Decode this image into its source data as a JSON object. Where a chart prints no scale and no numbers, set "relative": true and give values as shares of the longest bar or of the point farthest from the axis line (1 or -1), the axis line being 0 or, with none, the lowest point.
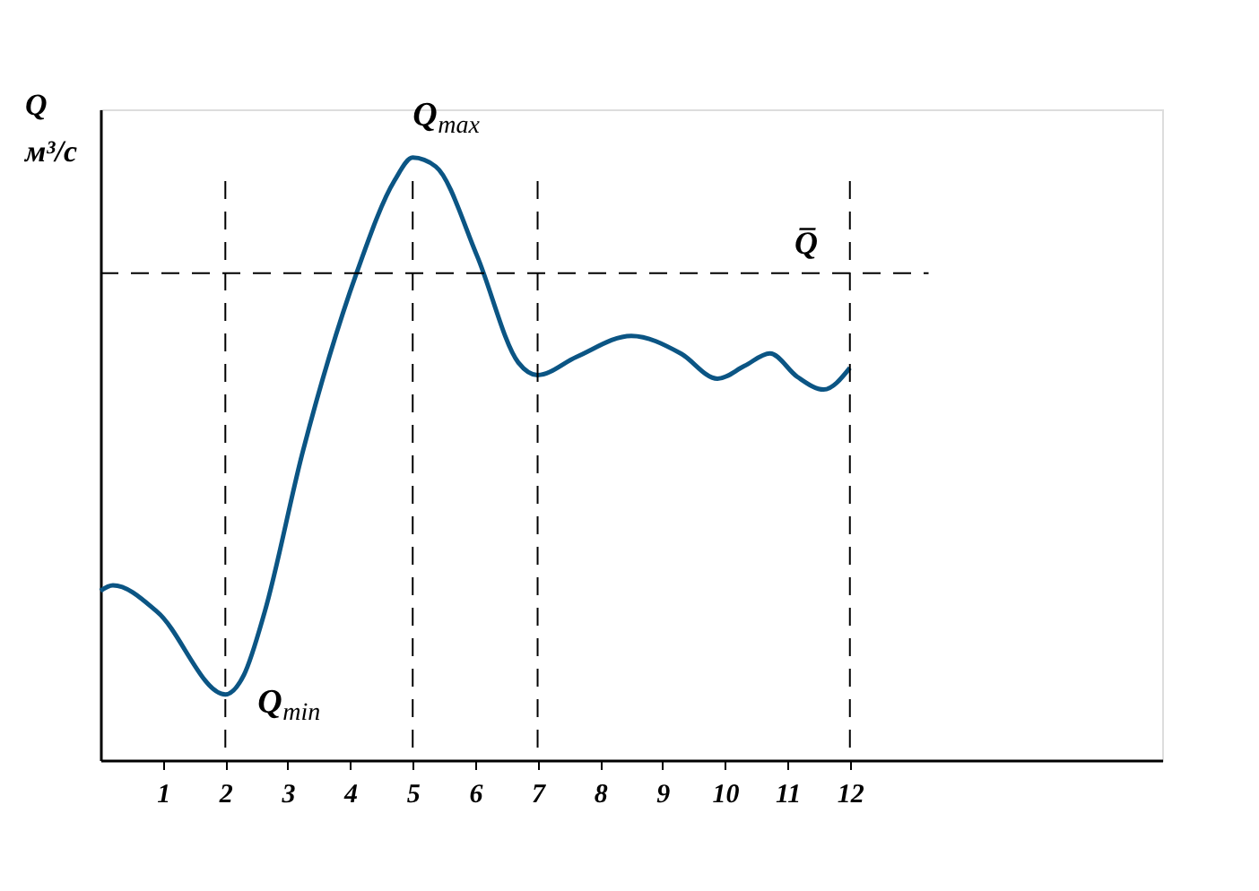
{
  "chart_data": {
    "type": "line",
    "relative": true,
    "ylabel": "Q\nм³/с",
    "xlim": [
      0,
      17
    ],
    "xticks": [
      1,
      2,
      3,
      4,
      5,
      6,
      7,
      8,
      9,
      10,
      11,
      12
    ],
    "grid": false,
    "marker": "none",
    "line_style": "solid",
    "series": [
      {
        "color": "#0b5584",
        "x": [
          0,
          0.2,
          0.91,
          2,
          2.3,
          2.63,
          3.24,
          4.1,
          4.71,
          5,
          5.37,
          6.03,
          6.69,
          7,
          7.62,
          8.5,
          9.29,
          9.88,
          10.31,
          10.72,
          11.16,
          11.58,
          12
        ],
        "values": [
          0.281,
          0.29,
          0.246,
          0.109,
          0.142,
          0.246,
          0.512,
          0.808,
          0.962,
          1,
          0.985,
          0.837,
          0.66,
          0.639,
          0.669,
          0.704,
          0.675,
          0.633,
          0.654,
          0.675,
          0.636,
          0.615,
          0.651
        ]
      }
    ],
    "ref_lines": [
      {
        "axis": "y",
        "value": 0.808,
        "label": "Q̅",
        "line_style": "dashed",
        "color": "#000000"
      },
      {
        "axis": "x",
        "value": 2,
        "line_style": "dashed",
        "color": "#000000"
      },
      {
        "axis": "x",
        "value": 5,
        "line_style": "dashed",
        "color": "#000000"
      },
      {
        "axis": "x",
        "value": 7,
        "line_style": "dashed",
        "color": "#000000"
      },
      {
        "axis": "x",
        "value": 12,
        "line_style": "dashed",
        "color": "#000000"
      }
    ],
    "annotations": [
      {
        "text": "Q$_{max}$",
        "x": 5,
        "y": 1
      },
      {
        "text": "Q$_{min}$",
        "x": 2,
        "y": 0.109
      }
    ]
  }
}
